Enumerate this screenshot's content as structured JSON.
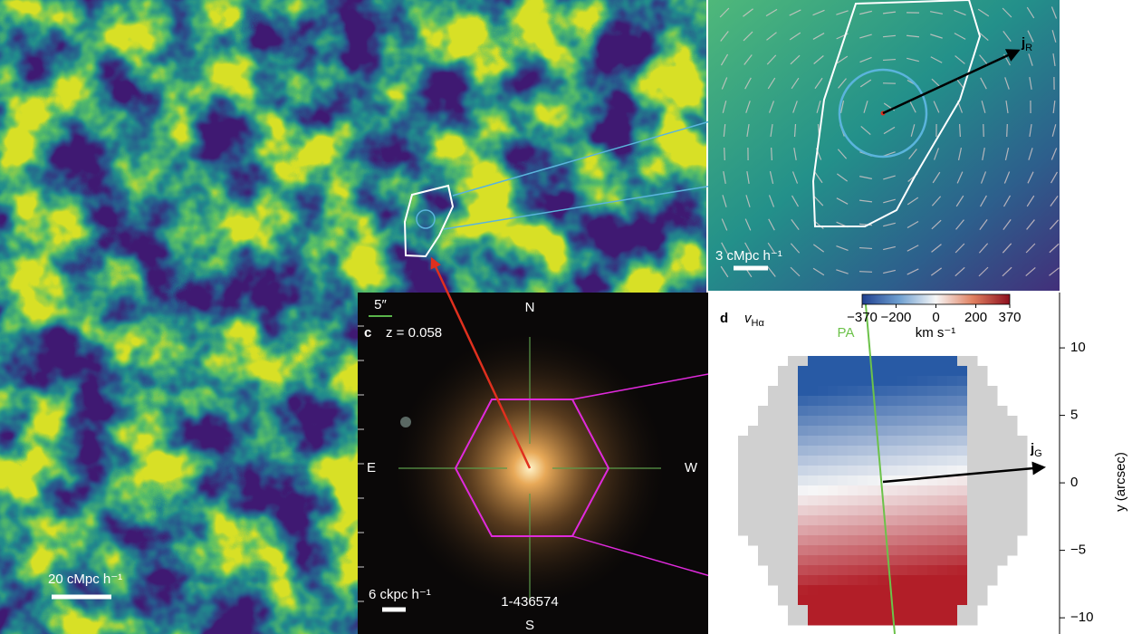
{
  "panel_a": {
    "scale_bar": "20 cMpc h⁻¹"
  },
  "panel_b": {
    "scale_bar": "3 cMpc h⁻¹",
    "vector": {
      "symbol": "j",
      "subscript": "R"
    }
  },
  "panel_c": {
    "letter": "c",
    "redshift": "z = 0.058",
    "angular_scale": "5″",
    "physical_scale": "6 ckpc h⁻¹",
    "galaxy_id": "1-436574",
    "compass": {
      "north": "N",
      "south": "S",
      "east": "E",
      "west": "W"
    }
  },
  "panel_d": {
    "letter": "d",
    "quantity": {
      "symbol": "v",
      "subscript": "Hα"
    },
    "pa_label": "PA",
    "vector": {
      "symbol": "j",
      "subscript": "G"
    },
    "colorbar": {
      "unit": "km s⁻¹",
      "lim": [
        -370,
        370
      ],
      "ticks": [
        {
          "value": -370,
          "label": "−370"
        },
        {
          "value": -200,
          "label": "−200"
        },
        0,
        200,
        370
      ]
    },
    "y_axis": {
      "label": "y (arcsec)",
      "lim": [
        -11.2,
        14.1
      ],
      "ticks": [
        10,
        5,
        0,
        {
          "value": -5,
          "label": "−5"
        },
        {
          "value": -10,
          "label": "−10"
        }
      ]
    }
  }
}
